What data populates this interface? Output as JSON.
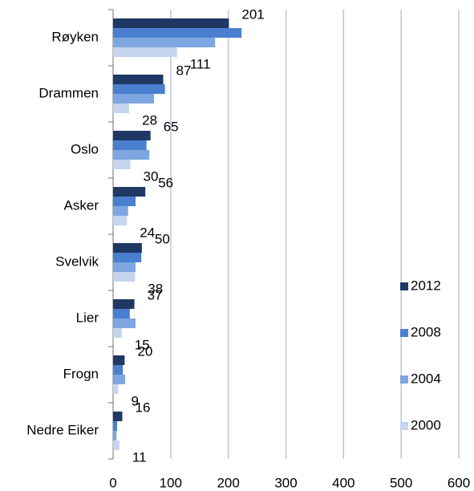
{
  "chart_data": {
    "type": "bar",
    "orientation": "horizontal",
    "categories": [
      "Røyken",
      "Drammen",
      "Oslo",
      "Asker",
      "Svelvik",
      "Lier",
      "Frogn",
      "Nedre Eiker"
    ],
    "series": [
      {
        "name": "2012",
        "color": "#1f3864",
        "values": [
          201,
          87,
          65,
          56,
          50,
          37,
          20,
          16
        ],
        "data_labels": true
      },
      {
        "name": "2008",
        "color": "#4a7fd0",
        "values": [
          223,
          90,
          58,
          39,
          49,
          29,
          17,
          7
        ],
        "data_labels": false
      },
      {
        "name": "2004",
        "color": "#7ea6e0",
        "values": [
          177,
          71,
          63,
          26,
          39,
          39,
          21,
          6
        ],
        "data_labels": false
      },
      {
        "name": "2000",
        "color": "#c5d5ee",
        "values": [
          111,
          28,
          30,
          24,
          38,
          15,
          9,
          11
        ],
        "data_labels": true
      }
    ],
    "xlim": [
      0,
      600
    ],
    "xticks": [
      0,
      100,
      200,
      300,
      400,
      500,
      600
    ],
    "grid": true,
    "legend": "right"
  }
}
